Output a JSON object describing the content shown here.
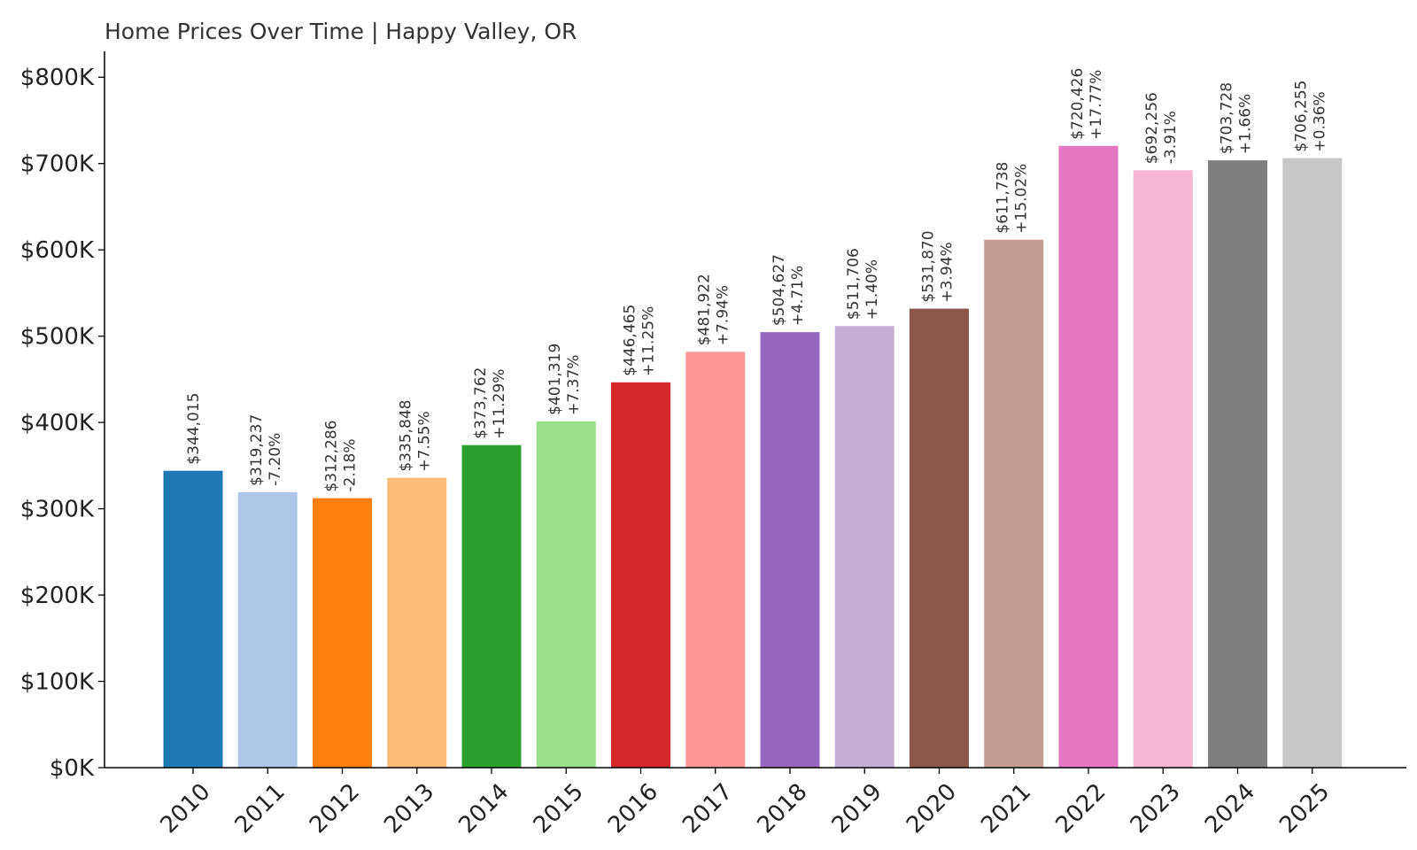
{
  "chart_data": {
    "type": "bar",
    "title": "Home Prices Over Time | Happy Valley, OR",
    "xlabel": "",
    "ylabel": "",
    "ylim": [
      0,
      830000
    ],
    "y_ticks": [
      0,
      100000,
      200000,
      300000,
      400000,
      500000,
      600000,
      700000,
      800000
    ],
    "y_tick_labels": [
      "$0K",
      "$100K",
      "$200K",
      "$300K",
      "$400K",
      "$500K",
      "$600K",
      "$700K",
      "$800K"
    ],
    "grid": false,
    "legend": "none",
    "categories": [
      "2010",
      "2011",
      "2012",
      "2013",
      "2014",
      "2015",
      "2016",
      "2017",
      "2018",
      "2019",
      "2020",
      "2021",
      "2022",
      "2023",
      "2024",
      "2025"
    ],
    "values": [
      344015,
      319237,
      312286,
      335848,
      373762,
      401319,
      446465,
      481922,
      504627,
      511706,
      531870,
      611738,
      720426,
      692256,
      703728,
      706255
    ],
    "value_labels": [
      "$344,015",
      "$319,237",
      "$312,286",
      "$335,848",
      "$373,762",
      "$401,319",
      "$446,465",
      "$481,922",
      "$504,627",
      "$511,706",
      "$531,870",
      "$611,738",
      "$720,426",
      "$692,256",
      "$703,728",
      "$706,255"
    ],
    "change_labels": [
      "",
      "-7.20%",
      "-2.18%",
      "+7.55%",
      "+11.29%",
      "+7.37%",
      "+11.25%",
      "+7.94%",
      "+4.71%",
      "+1.40%",
      "+3.94%",
      "+15.02%",
      "+17.77%",
      "-3.91%",
      "+1.66%",
      "+0.36%"
    ],
    "colors": [
      "#1f77b4",
      "#aec7e8",
      "#ff7f0e",
      "#ffbb78",
      "#2ca02c",
      "#98df8a",
      "#d62728",
      "#ff9896",
      "#9467bd",
      "#c5b0d5",
      "#8c564b",
      "#c49c94",
      "#e377c2",
      "#f7b6d2",
      "#7f7f7f",
      "#c7c7c7"
    ]
  }
}
